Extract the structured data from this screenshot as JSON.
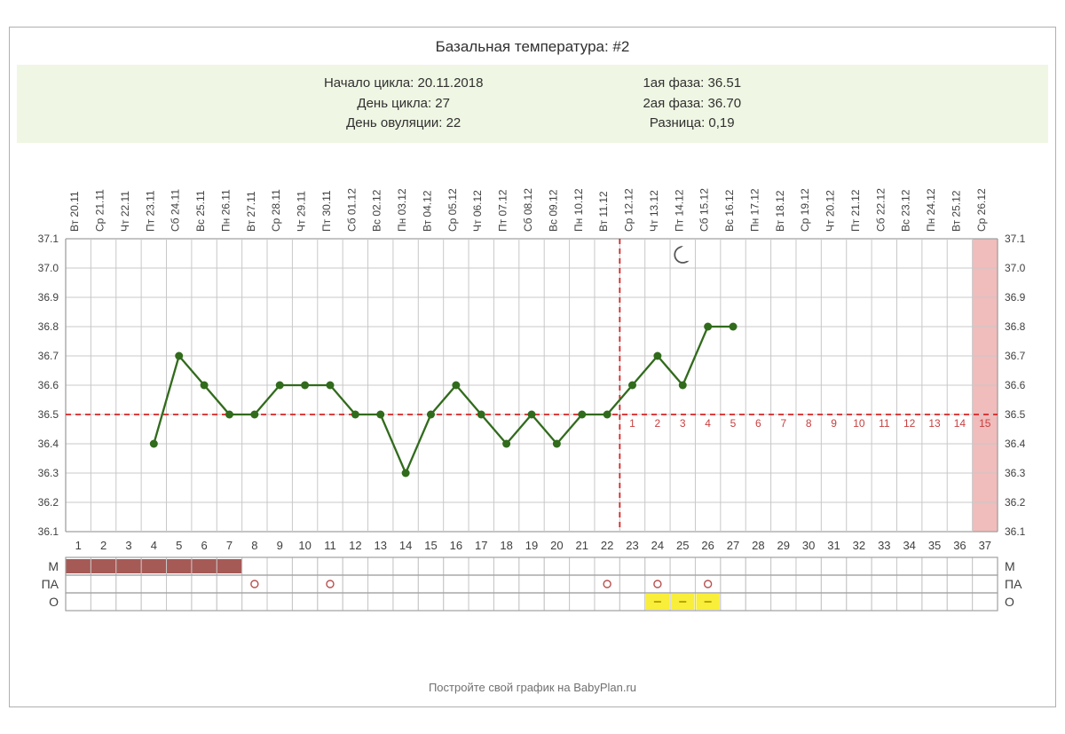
{
  "title": "Базальная температура: #2",
  "info": {
    "left": [
      {
        "k": "Начало цикла",
        "v": "20.11.2018"
      },
      {
        "k": "День цикла",
        "v": "27"
      },
      {
        "k": "День овуляции",
        "v": "22"
      }
    ],
    "right": [
      {
        "k": "1ая фаза",
        "v": "36.51"
      },
      {
        "k": "2ая фаза",
        "v": "36.70"
      },
      {
        "k": "Разница",
        "v": "0,19"
      }
    ]
  },
  "footer": "Постройте свой график на BabyPlan.ru",
  "chart": {
    "type": "line",
    "n_days": 37,
    "y_min": 36.1,
    "y_max": 37.1,
    "y_ticks": [
      36.1,
      36.2,
      36.3,
      36.4,
      36.5,
      36.6,
      36.7,
      36.8,
      36.9,
      37.0,
      37.1
    ],
    "date_labels": [
      "Вт 20.11",
      "Ср 21.11",
      "Чт 22.11",
      "Пт 23.11",
      "Сб 24.11",
      "Вс 25.11",
      "Пн 26.11",
      "Вт 27.11",
      "Ср 28.11",
      "Чт 29.11",
      "Пт 30.11",
      "Сб 01.12",
      "Вс 02.12",
      "Пн 03.12",
      "Вт 04.12",
      "Ср 05.12",
      "Чт 06.12",
      "Пт 07.12",
      "Сб 08.12",
      "Вс 09.12",
      "Пн 10.12",
      "Вт 11.12",
      "Ср 12.12",
      "Чт 13.12",
      "Пт 14.12",
      "Сб 15.12",
      "Вс 16.12",
      "Пн 17.12",
      "Вт 18.12",
      "Ср 19.12",
      "Чт 20.12",
      "Пт 21.12",
      "Сб 22.12",
      "Вс 23.12",
      "Пн 24.12",
      "Вт 25.12",
      "Ср 26.12"
    ],
    "values": [
      null,
      null,
      null,
      36.4,
      36.7,
      36.6,
      36.5,
      36.5,
      36.6,
      36.6,
      36.6,
      36.5,
      36.5,
      36.3,
      36.5,
      36.6,
      36.5,
      36.4,
      36.5,
      36.4,
      36.5,
      36.5,
      36.6,
      36.7,
      36.6,
      36.8,
      36.8,
      null,
      null,
      null,
      null,
      null,
      null,
      null,
      null,
      null,
      null
    ],
    "menses_days": [
      1,
      2,
      3,
      4,
      5,
      6,
      7
    ],
    "pa_days": [
      8,
      11,
      22,
      24,
      26
    ],
    "o_days": [
      24,
      25,
      26
    ],
    "ovulation_day": 22,
    "cover_line": 36.5,
    "moon_day": 25,
    "post_ov_nums": [
      1,
      2,
      3,
      4,
      5,
      6,
      7,
      8,
      9,
      10,
      11,
      12,
      13,
      14,
      15
    ],
    "row_labels": [
      "М",
      "ПА",
      "О"
    ],
    "colors": {
      "grid": "#c8c8c8",
      "grid_bold": "#a0a0a0",
      "line": "#316b1c",
      "line_width": 2.3,
      "marker": "#316b1c",
      "marker_radius": 4.5,
      "menses_fill": "#a55a56",
      "yellow_fill": "#f9ee39",
      "yellow_stroke": "#b8a500",
      "pa_stroke": "#b85050",
      "pink_col": "#f0bcbc",
      "dash": "#d82424",
      "text": "#404040",
      "post_ov_text": "#c84040"
    },
    "fontsize_axis": 12,
    "fontsize_daynum": 13,
    "fontsize_rowlabel": 14,
    "fontsize_post_ov": 12,
    "fontsize_date": 12
  }
}
